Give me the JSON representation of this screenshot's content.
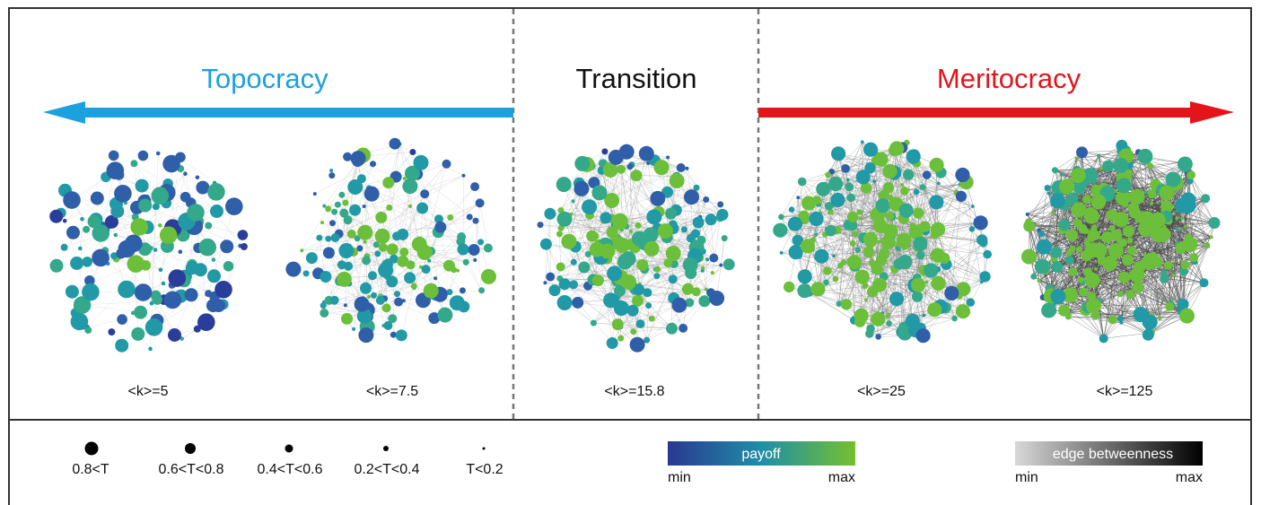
{
  "headings": {
    "left": "Topocracy",
    "center": "Transition",
    "right": "Meritocracy"
  },
  "networks": [
    {
      "label": "<k>=5",
      "density": 0.08,
      "green_share": 0.15,
      "radius_scale": 1.15
    },
    {
      "label": "<k>=7.5",
      "density": 0.18,
      "green_share": 0.35,
      "radius_scale": 1.0
    },
    {
      "label": "<k>=15.8",
      "density": 0.35,
      "green_share": 0.45,
      "radius_scale": 1.0
    },
    {
      "label": "<k>=25",
      "density": 0.55,
      "green_share": 0.6,
      "radius_scale": 0.95
    },
    {
      "label": "<k>=125",
      "density": 1.0,
      "green_share": 0.8,
      "radius_scale": 1.0
    }
  ],
  "node_size_legend": [
    {
      "label": "0.8<T",
      "size_rank": 5
    },
    {
      "label": "0.6<T<0.8",
      "size_rank": 4
    },
    {
      "label": "0.4<T<0.6",
      "size_rank": 3
    },
    {
      "label": "0.2<T<0.4",
      "size_rank": 2
    },
    {
      "label": "T<0.2",
      "size_rank": 1
    }
  ],
  "payoff_legend": {
    "title": "payoff",
    "min": "min",
    "max": "max"
  },
  "edge_legend": {
    "title": "edge betweenness",
    "min": "min",
    "max": "max"
  },
  "colors": {
    "topocracy": "#1ba1dd",
    "meritocracy": "#e3151b",
    "node_blue": "#2a3d9a",
    "node_teal": "#2199a6",
    "node_green": "#6cbf3a",
    "text": "#111111"
  }
}
